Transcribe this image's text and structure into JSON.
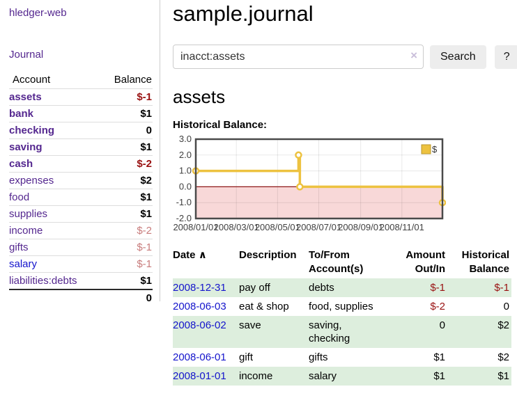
{
  "app": {
    "title": "hledger-web"
  },
  "colors": {
    "link_purple": "#54278f",
    "link_blue": "#1414cc",
    "negative": "#991111",
    "negative_light": "#c87c7c",
    "row_stripe_green": "#ddeedd",
    "button_gray": "#ededed",
    "series_gold": "#edc240"
  },
  "sidebar": {
    "journal_label": "Journal",
    "accounts": {
      "header_account": "Account",
      "header_balance": "Balance",
      "rows": [
        {
          "name": "assets",
          "balance": "$-1",
          "depth": 0,
          "emphasized": true,
          "balance_negative": true
        },
        {
          "name": "bank",
          "balance": "$1",
          "depth": 1,
          "emphasized": true,
          "balance_negative": false
        },
        {
          "name": "checking",
          "balance": "0",
          "depth": 2,
          "emphasized": true,
          "balance_negative": false
        },
        {
          "name": "saving",
          "balance": "$1",
          "depth": 2,
          "emphasized": true,
          "balance_negative": false
        },
        {
          "name": "cash",
          "balance": "$-2",
          "depth": 1,
          "emphasized": true,
          "balance_negative": true
        },
        {
          "name": "expenses",
          "balance": "$2",
          "depth": 0,
          "emphasized": false,
          "balance_negative": false
        },
        {
          "name": "food",
          "balance": "$1",
          "depth": 1,
          "emphasized": false,
          "balance_negative": false
        },
        {
          "name": "supplies",
          "balance": "$1",
          "depth": 1,
          "emphasized": false,
          "balance_negative": false
        },
        {
          "name": "income",
          "balance": "$-2",
          "depth": 0,
          "emphasized": false,
          "balance_negative": true
        },
        {
          "name": "gifts",
          "balance": "$-1",
          "depth": 1,
          "emphasized": false,
          "balance_negative": true
        },
        {
          "name": "salary",
          "balance": "$-1",
          "depth": 1,
          "emphasized": false,
          "balance_negative": true
        },
        {
          "name": "liabilities:debts",
          "balance": "$1",
          "depth": 0,
          "emphasized": false,
          "balance_negative": false
        }
      ],
      "total": "0"
    }
  },
  "header": {
    "title": "sample.journal"
  },
  "search": {
    "value": "inacct:assets",
    "clear_icon": "×",
    "button_label": "Search",
    "help_label": "?"
  },
  "register": {
    "account_title": "assets",
    "chart_label": "Historical Balance:",
    "table": {
      "headers": {
        "date": "Date",
        "description": "Description",
        "accounts": "To/From Account(s)",
        "amount": "Amount Out/In",
        "balance": "Historical Balance"
      },
      "sort_icon": "∧",
      "rows": [
        {
          "date": "2008-12-31",
          "description": "pay off",
          "accounts": "debts",
          "amount": "$-1",
          "balance": "$-1"
        },
        {
          "date": "2008-06-03",
          "description": "eat & shop",
          "accounts": "food, supplies",
          "amount": "$-2",
          "balance": "0"
        },
        {
          "date": "2008-06-02",
          "description": "save",
          "accounts": "saving, checking",
          "amount": "0",
          "balance": "$2"
        },
        {
          "date": "2008-06-01",
          "description": "gift",
          "accounts": "gifts",
          "amount": "$1",
          "balance": "$2"
        },
        {
          "date": "2008-01-01",
          "description": "income",
          "accounts": "salary",
          "amount": "$1",
          "balance": "$1"
        }
      ]
    }
  },
  "chart_data": {
    "type": "line",
    "step": true,
    "title": "Historical Balance:",
    "xrange": [
      "2008/01/01",
      "2008/12/31"
    ],
    "xticks": [
      "2008/01/01",
      "2008/03/01",
      "2008/05/01",
      "2008/07/01",
      "2008/09/01",
      "2008/11/01"
    ],
    "ylim": [
      -2,
      3
    ],
    "yticks": [
      {
        "value": 3,
        "label": "3.0"
      },
      {
        "value": 2,
        "label": "2.0"
      },
      {
        "value": 1,
        "label": "1.0"
      },
      {
        "value": 0,
        "label": "0.0"
      },
      {
        "value": -1,
        "label": "-1.0"
      },
      {
        "value": -2,
        "label": "-2.0"
      }
    ],
    "series": [
      {
        "name": "$",
        "color": "#edc240",
        "points": [
          {
            "x": "2008/01/01",
            "y": 1
          },
          {
            "x": "2008/06/01",
            "y": 2
          },
          {
            "x": "2008/06/03",
            "y": 0
          },
          {
            "x": "2008/12/31",
            "y": -1
          }
        ]
      }
    ],
    "grid": true,
    "legend_position": "top-right",
    "negative_zone_color": "#f8d8d8",
    "zero_line_color": "#8e1616",
    "border_color": "#4a4a4a"
  }
}
